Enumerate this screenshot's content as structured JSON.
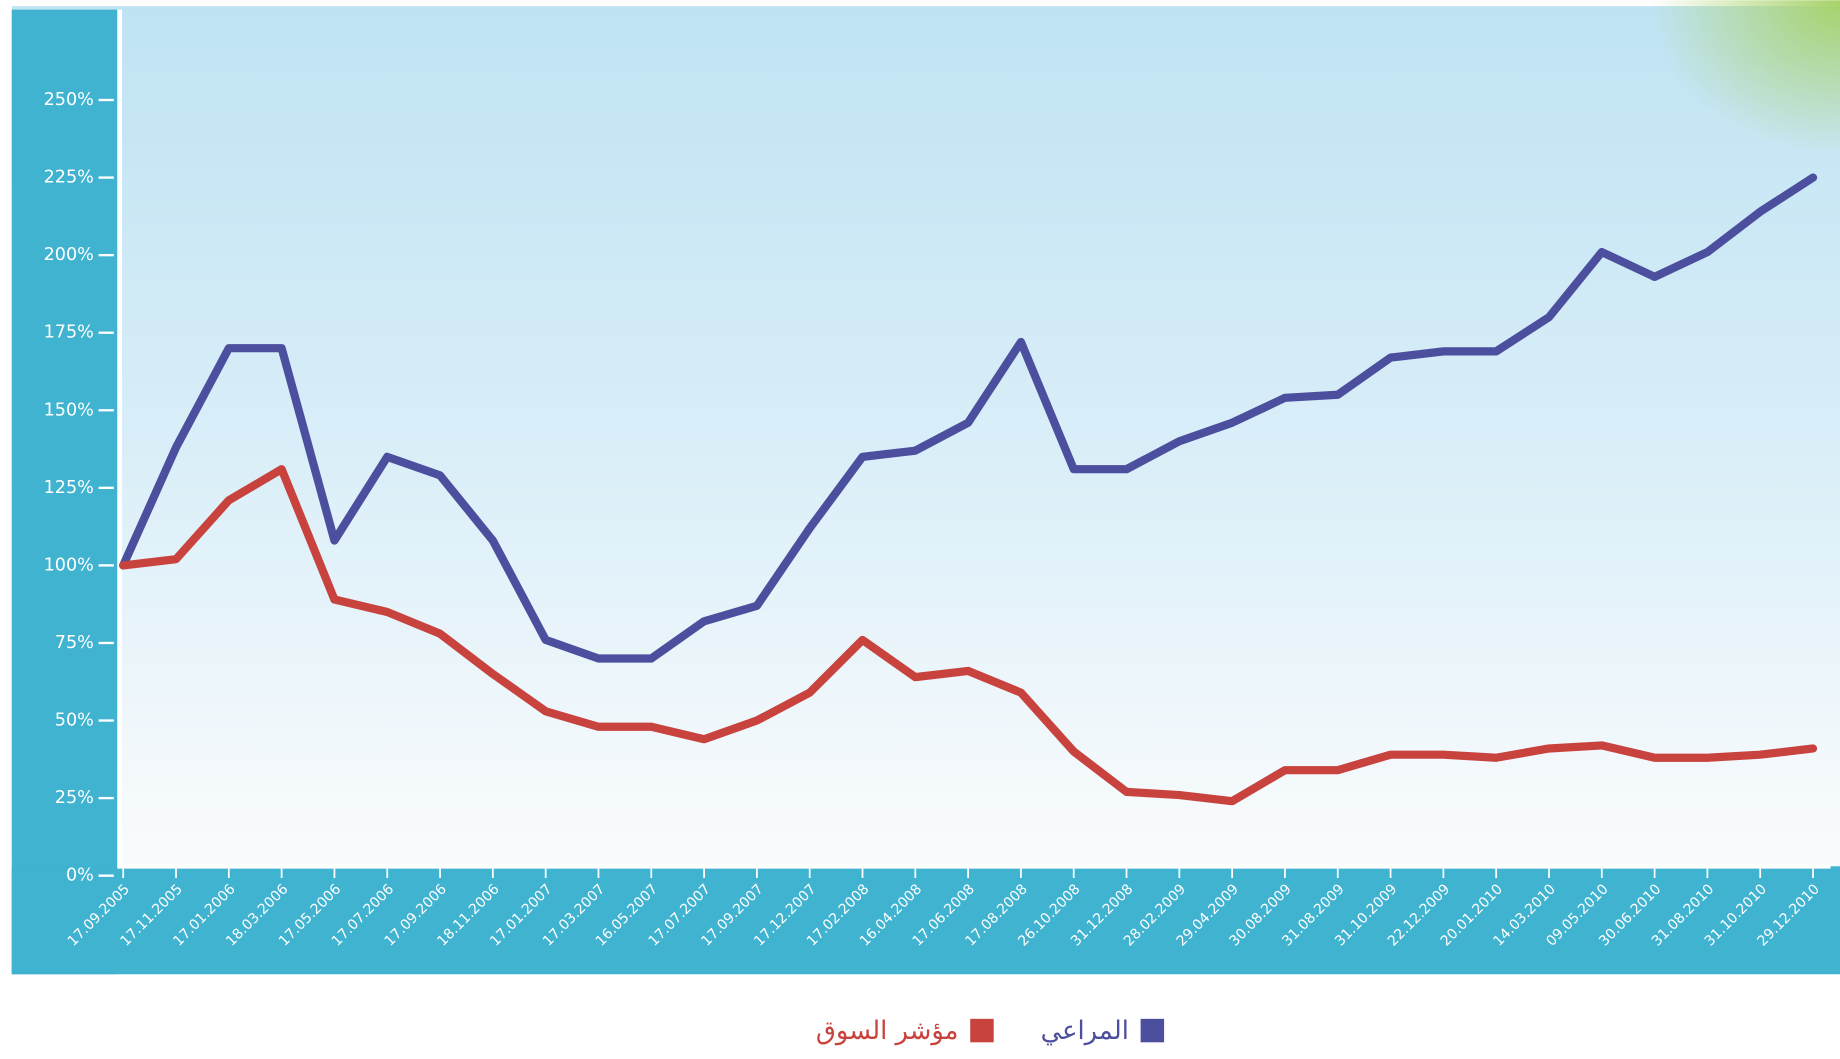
{
  "chart_data": {
    "type": "line",
    "x": [
      "17.09.2005",
      "17.11.2005",
      "17.01.2006",
      "18.03.2006",
      "17.05.2006",
      "17.07.2006",
      "17.09.2006",
      "18.11.2006",
      "17.01.2007",
      "17.03.2007",
      "16.05.2007",
      "17.07.2007",
      "17.09.2007",
      "17.12.2007",
      "17.02.2008",
      "16.04.2008",
      "17.06.2008",
      "17.08.2008",
      "26.10.2008",
      "31.12.2008",
      "28.02.2009",
      "29.04.2009",
      "30.08.2009",
      "31.08.2009",
      "31.10.2009",
      "22.12.2009",
      "20.01.2010",
      "14.03.2010",
      "09.05.2010",
      "30.06.2010",
      "31.08.2010",
      "31.10.2010",
      "29.12.2010"
    ],
    "series": [
      {
        "name": "المراعي",
        "color": "#4b4f9e",
        "values": [
          100,
          138,
          170,
          170,
          108,
          135,
          129,
          108,
          76,
          70,
          70,
          82,
          87,
          112,
          135,
          137,
          146,
          172,
          131,
          131,
          140,
          146,
          154,
          155,
          167,
          169,
          169,
          180,
          201,
          193,
          201,
          214,
          225
        ]
      },
      {
        "name": "مؤشر السوق",
        "color": "#c8423e",
        "values": [
          100,
          102,
          121,
          131,
          89,
          85,
          78,
          65,
          53,
          48,
          48,
          44,
          50,
          59,
          76,
          64,
          66,
          59,
          40,
          27,
          26,
          24,
          34,
          34,
          39,
          39,
          38,
          41,
          42,
          38,
          38,
          39,
          41
        ]
      }
    ],
    "ylim": [
      0,
      250
    ],
    "yticks": [
      {
        "value": 0,
        "label": "0%"
      },
      {
        "value": 25,
        "label": "25%"
      },
      {
        "value": 50,
        "label": "50%"
      },
      {
        "value": 75,
        "label": "75%"
      },
      {
        "value": 100,
        "label": "100%"
      },
      {
        "value": 125,
        "label": "125%"
      },
      {
        "value": 150,
        "label": "150%"
      },
      {
        "value": 175,
        "label": "175%"
      },
      {
        "value": 200,
        "label": "200%"
      },
      {
        "value": 225,
        "label": "225%"
      },
      {
        "value": 250,
        "label": "250%"
      }
    ]
  }
}
